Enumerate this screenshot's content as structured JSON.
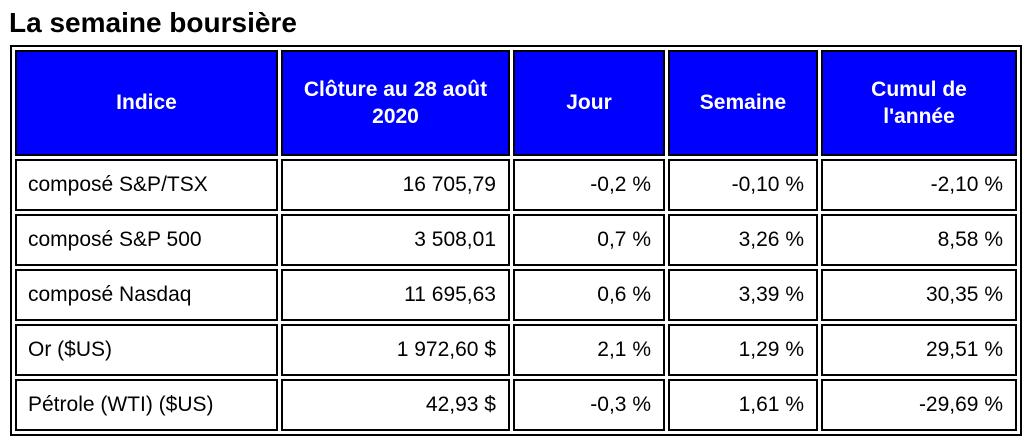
{
  "title": "La semaine boursière",
  "colors": {
    "header_bg": "#0000FE",
    "header_text": "#FFFFFF",
    "border": "#000000",
    "body_text": "#000000",
    "background": "#FFFFFF"
  },
  "table": {
    "headers": [
      "Indice",
      "Clôture au 28 août 2020",
      "Jour",
      "Semaine",
      "Cumul de l'année"
    ],
    "rows": [
      [
        "composé S&P/TSX",
        "16 705,79",
        "-0,2 %",
        "-0,10 %",
        "-2,10 %"
      ],
      [
        "composé S&P 500",
        "3 508,01",
        "0,7 %",
        "3,26 %",
        "8,58 %"
      ],
      [
        "composé Nasdaq",
        "11 695,63",
        "0,6 %",
        "3,39 %",
        "30,35 %"
      ],
      [
        "Or ($US)",
        "1 972,60 $",
        "2,1 %",
        "1,29 %",
        "29,51 %"
      ],
      [
        "Pétrole (WTI) ($US)",
        "42,93 $",
        "-0,3 %",
        "1,61 %",
        "-29,69 %"
      ]
    ]
  }
}
